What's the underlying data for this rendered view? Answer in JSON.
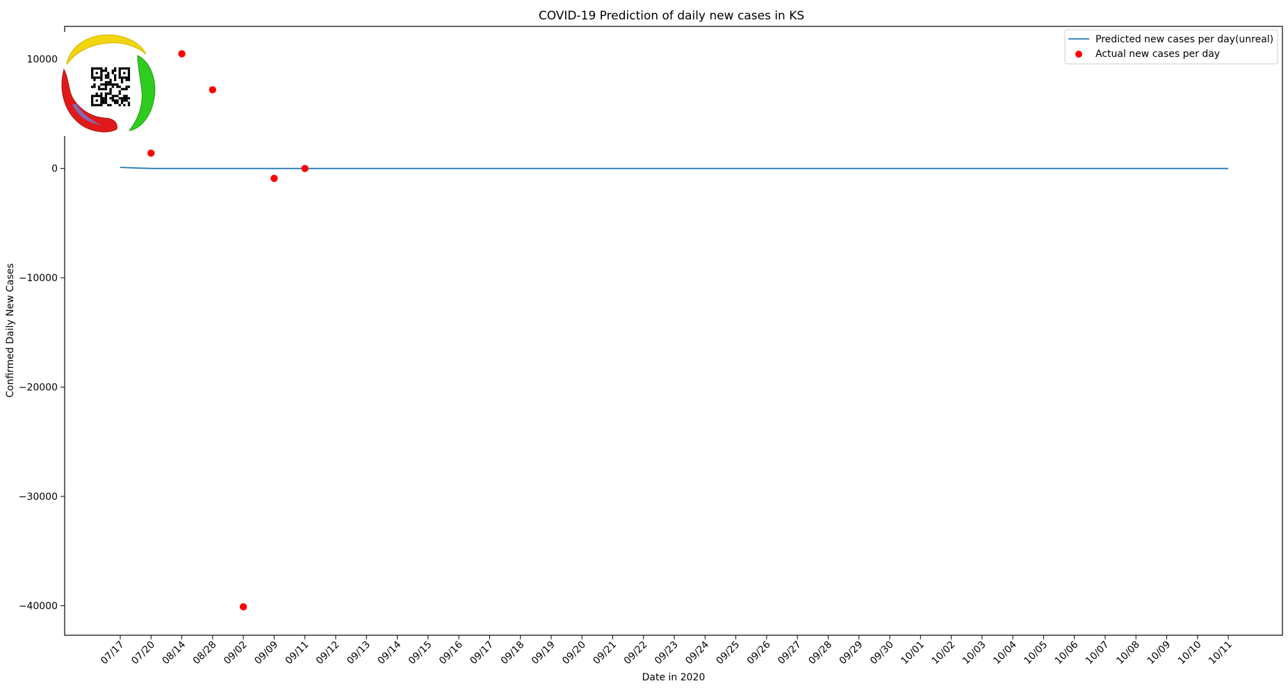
{
  "chart_data": {
    "type": "line",
    "title": "COVID-19 Prediction of daily new cases in KS",
    "xlabel": "Date in 2020",
    "ylabel": "Confirmed Daily New Cases",
    "categories": [
      "07/17",
      "07/20",
      "08/14",
      "08/28",
      "09/02",
      "09/09",
      "09/11",
      "09/12",
      "09/13",
      "09/14",
      "09/15",
      "09/16",
      "09/17",
      "09/18",
      "09/19",
      "09/20",
      "09/21",
      "09/22",
      "09/23",
      "09/24",
      "09/25",
      "09/26",
      "09/27",
      "09/28",
      "09/29",
      "09/30",
      "10/01",
      "10/02",
      "10/03",
      "10/04",
      "10/05",
      "10/06",
      "10/07",
      "10/08",
      "10/09",
      "10/10",
      "10/11"
    ],
    "yticks": [
      10000,
      0,
      -10000,
      -20000,
      -30000,
      -40000
    ],
    "ytick_labels": [
      "10000",
      "0",
      "−10000",
      "−20000",
      "−30000",
      "−40000"
    ],
    "ylim": [
      -42700,
      13000
    ],
    "series": [
      {
        "name": "Predicted new cases per day(unreal)",
        "kind": "line",
        "color": "#1f77b4",
        "values": [
          100,
          0,
          0,
          0,
          0,
          0,
          0,
          0,
          0,
          0,
          0,
          0,
          0,
          0,
          0,
          0,
          0,
          0,
          0,
          0,
          0,
          0,
          0,
          0,
          0,
          0,
          0,
          0,
          0,
          0,
          0,
          0,
          0,
          0,
          0,
          0,
          0
        ]
      },
      {
        "name": "Actual new cases per day",
        "kind": "scatter",
        "color": "#ff0000",
        "points": [
          {
            "x": "07/20",
            "y": 1400
          },
          {
            "x": "08/14",
            "y": 10500
          },
          {
            "x": "08/28",
            "y": 7200
          },
          {
            "x": "09/02",
            "y": -40100
          },
          {
            "x": "09/09",
            "y": -900
          },
          {
            "x": "09/11",
            "y": 0
          }
        ]
      }
    ],
    "legend": {
      "placement": "top-right"
    },
    "grid": false
  },
  "overlay": {
    "logo": "circular-logo-with-qr-code"
  }
}
